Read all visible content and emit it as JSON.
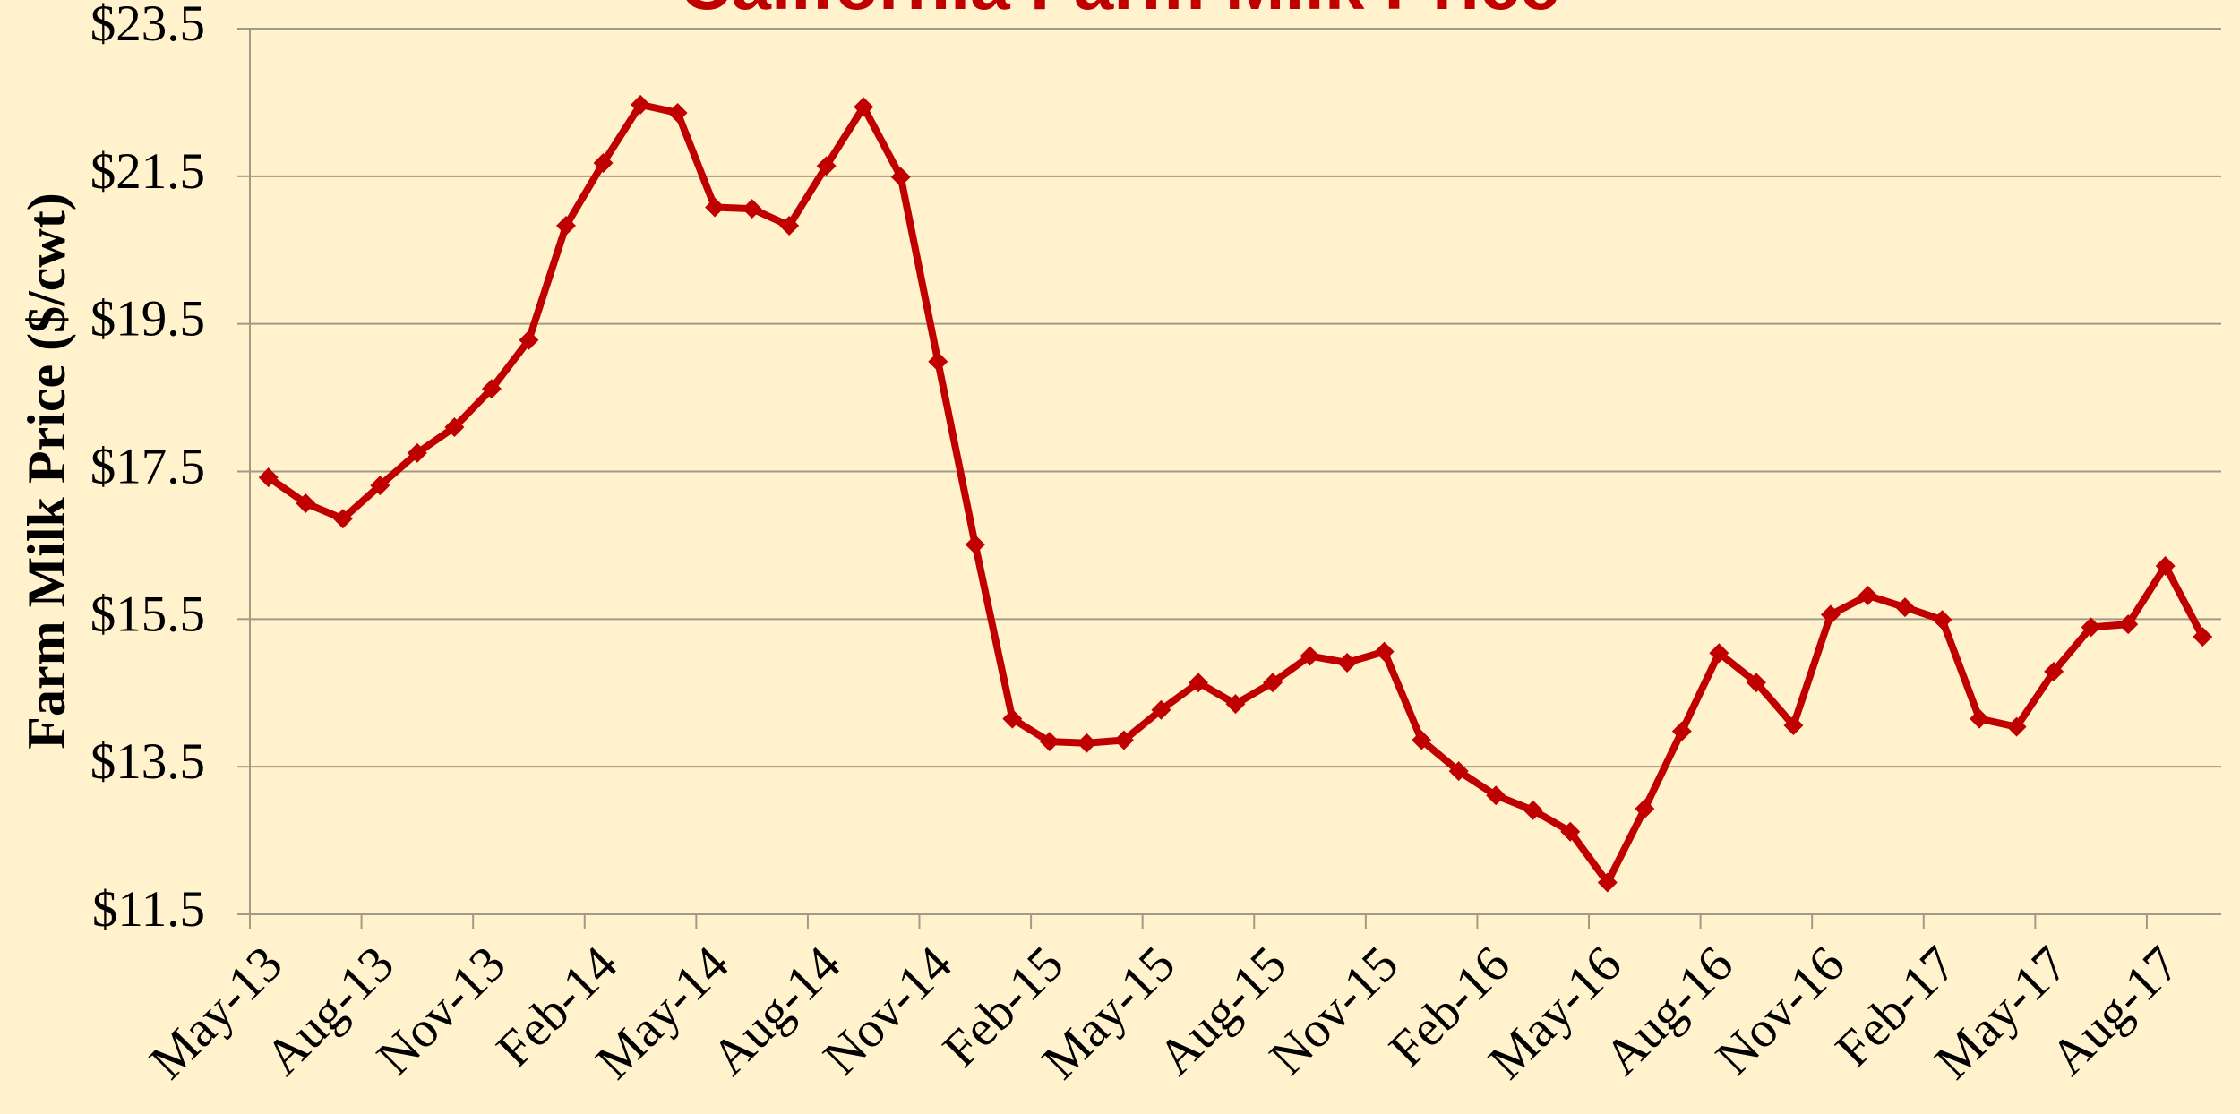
{
  "chart_data": {
    "type": "line",
    "title": "California Farm Milk Price",
    "y_label": "Farm Milk Price ($/cwt)",
    "categories": [
      "May-13",
      null,
      null,
      "Aug-13",
      null,
      null,
      "Nov-13",
      null,
      null,
      "Feb-14",
      null,
      null,
      "May-14",
      null,
      null,
      "Aug-14",
      null,
      null,
      "Nov-14",
      null,
      null,
      "Feb-15",
      null,
      null,
      "May-15",
      null,
      null,
      "Aug-15",
      null,
      null,
      "Nov-15",
      null,
      null,
      "Feb-16",
      null,
      null,
      "May-16",
      null,
      null,
      "Aug-16",
      null,
      null,
      "Nov-16",
      null,
      null,
      "Feb-17",
      null,
      null,
      "May-17",
      null,
      null,
      "Aug-17",
      null
    ],
    "series": [
      {
        "name": "Farm Milk Price",
        "color": "#c00000",
        "values": [
          17.42,
          17.07,
          16.86,
          17.31,
          17.75,
          18.1,
          18.62,
          19.28,
          20.83,
          21.68,
          22.47,
          22.36,
          21.08,
          21.06,
          20.83,
          21.64,
          22.44,
          21.49,
          18.99,
          16.51,
          14.15,
          13.84,
          13.82,
          13.86,
          14.27,
          14.64,
          14.35,
          14.64,
          15.0,
          14.91,
          15.06,
          13.86,
          13.44,
          13.11,
          12.91,
          12.62,
          11.93,
          12.93,
          13.98,
          15.04,
          14.64,
          14.06,
          15.56,
          15.82,
          15.66,
          15.49,
          14.15,
          14.04,
          14.79,
          15.39,
          15.43,
          16.22,
          15.26
        ]
      }
    ],
    "ylim": [
      11.5,
      23.5
    ],
    "yticks": [
      {
        "value": 11.5,
        "label": "$11.5"
      },
      {
        "value": 13.5,
        "label": "$13.5"
      },
      {
        "value": 15.5,
        "label": "$15.5"
      },
      {
        "value": 17.5,
        "label": "$17.5"
      },
      {
        "value": 19.5,
        "label": "$19.5"
      },
      {
        "value": 21.5,
        "label": "$21.5"
      },
      {
        "value": 23.5,
        "label": "$23.5"
      }
    ],
    "grid": true
  }
}
